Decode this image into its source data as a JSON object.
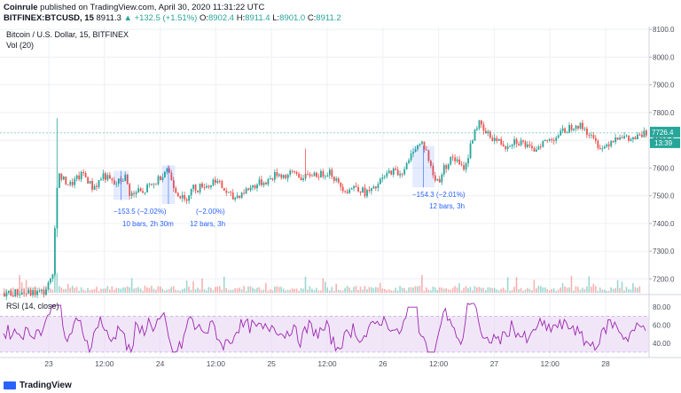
{
  "header": {
    "brand": "Coinrule",
    "published": " published on TradingView.com, April 30, 2020 11:31:22 UTC",
    "symbol": "BITFINEX:BTCUSD, 15",
    "last": "8911.3",
    "change": "▲ +132.5 (+1.51%)",
    "o_label": "O:",
    "o": "8902.4",
    "h_label": "H:",
    "h": "8911.4",
    "l_label": "L:",
    "l": "8901.0",
    "c_label": "C:",
    "c": "8911.2"
  },
  "legend": {
    "title": "Bitcoin / U.S. Dollar, 15, BITFINEX",
    "vol": "Vol (20)",
    "rsi": "RSI (14, close)"
  },
  "price_tag": {
    "value": "7726.4",
    "time": "13:39"
  },
  "footer": {
    "brand": "TradingView"
  },
  "colors": {
    "up": "#26a69a",
    "down": "#ef5350",
    "rsi": "#9c27b0",
    "rsi_band": "#e8d5f3",
    "measure": "#2962ff"
  },
  "chart_data": {
    "type": "candlestick",
    "title": "Bitcoin / U.S. Dollar, 15, BITFINEX",
    "price_axis": {
      "ticks": [
        "8100.0",
        "8000.0",
        "7900.0",
        "7800.0",
        "7700.0",
        "7600.0",
        "7500.0",
        "7400.0",
        "7300.0",
        "7200.0"
      ],
      "ylim": [
        7150,
        8110
      ]
    },
    "rsi_axis": {
      "ticks": [
        "80.00",
        "60.00",
        "40.00"
      ],
      "ylim": [
        25,
        90
      ],
      "band": [
        30,
        70
      ]
    },
    "x_ticks": [
      "23",
      "12:00",
      "24",
      "12:00",
      "25",
      "12:00",
      "26",
      "12:00",
      "27",
      "12:00",
      "28"
    ],
    "price_path": [
      [
        0,
        7148
      ],
      [
        6,
        7150
      ],
      [
        12,
        7148
      ],
      [
        18,
        7152
      ],
      [
        21,
        7190
      ],
      [
        22,
        7230
      ],
      [
        23,
        7380
      ],
      [
        24,
        7540
      ],
      [
        25,
        7570
      ],
      [
        27,
        7555
      ],
      [
        30,
        7540
      ],
      [
        33,
        7560
      ],
      [
        36,
        7580
      ],
      [
        38,
        7555
      ],
      [
        40,
        7530
      ],
      [
        42,
        7540
      ],
      [
        45,
        7575
      ],
      [
        48,
        7555
      ],
      [
        50,
        7540
      ],
      [
        52,
        7550
      ],
      [
        55,
        7568
      ],
      [
        57,
        7510
      ],
      [
        59,
        7502
      ],
      [
        61,
        7520
      ],
      [
        63,
        7505
      ],
      [
        65,
        7530
      ],
      [
        68,
        7540
      ],
      [
        70,
        7560
      ],
      [
        72,
        7580
      ],
      [
        74,
        7600
      ],
      [
        76,
        7560
      ],
      [
        78,
        7520
      ],
      [
        80,
        7500
      ],
      [
        82,
        7480
      ],
      [
        84,
        7510
      ],
      [
        86,
        7530
      ],
      [
        88,
        7525
      ],
      [
        90,
        7540
      ],
      [
        93,
        7535
      ],
      [
        96,
        7560
      ],
      [
        100,
        7520
      ],
      [
        104,
        7490
      ],
      [
        108,
        7510
      ],
      [
        112,
        7530
      ],
      [
        116,
        7545
      ],
      [
        120,
        7555
      ],
      [
        124,
        7580
      ],
      [
        128,
        7570
      ],
      [
        132,
        7585
      ],
      [
        136,
        7560
      ],
      [
        140,
        7580
      ],
      [
        144,
        7575
      ],
      [
        148,
        7590
      ],
      [
        152,
        7540
      ],
      [
        156,
        7520
      ],
      [
        160,
        7535
      ],
      [
        164,
        7510
      ],
      [
        168,
        7520
      ],
      [
        172,
        7560
      ],
      [
        176,
        7590
      ],
      [
        180,
        7580
      ],
      [
        184,
        7620
      ],
      [
        186,
        7670
      ],
      [
        188,
        7680
      ],
      [
        190,
        7690
      ],
      [
        192,
        7660
      ],
      [
        194,
        7600
      ],
      [
        196,
        7555
      ],
      [
        198,
        7560
      ],
      [
        200,
        7600
      ],
      [
        202,
        7620
      ],
      [
        204,
        7640
      ],
      [
        206,
        7620
      ],
      [
        208,
        7600
      ],
      [
        210,
        7610
      ],
      [
        212,
        7680
      ],
      [
        214,
        7740
      ],
      [
        216,
        7760
      ],
      [
        218,
        7730
      ],
      [
        220,
        7720
      ],
      [
        222,
        7710
      ],
      [
        224,
        7700
      ],
      [
        228,
        7680
      ],
      [
        232,
        7700
      ],
      [
        236,
        7690
      ],
      [
        240,
        7660
      ],
      [
        244,
        7690
      ],
      [
        248,
        7700
      ],
      [
        252,
        7720
      ],
      [
        256,
        7740
      ],
      [
        260,
        7760
      ],
      [
        264,
        7740
      ],
      [
        268,
        7700
      ],
      [
        272,
        7670
      ],
      [
        276,
        7700
      ],
      [
        280,
        7720
      ],
      [
        284,
        7700
      ],
      [
        288,
        7710
      ],
      [
        292,
        7726
      ]
    ],
    "annotations": [
      {
        "text1": "−153.5 (−2.02%)",
        "text2": "10 bars, 2h 30m"
      },
      {
        "text1": "(−2.00%)",
        "text2": "12 bars, 3h"
      },
      {
        "text1": "−154.3 (−2.01%)",
        "text2": "12 bars, 3h"
      }
    ]
  }
}
